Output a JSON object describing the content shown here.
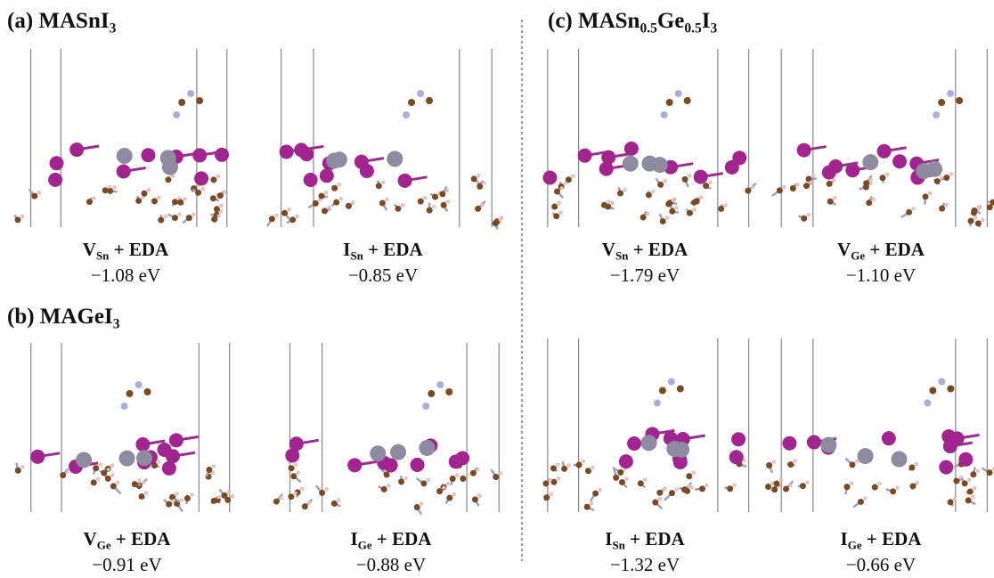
{
  "panels": [
    {
      "title": [
        {
          "t": "(a) MASnI"
        },
        {
          "t": "3",
          "sub": true
        }
      ],
      "structures": [
        {
          "label": [
            {
              "t": "V"
            },
            {
              "t": "Sn",
              "sub": true
            },
            {
              "t": " + EDA"
            }
          ],
          "energy": "−1.08 eV"
        },
        {
          "label": [
            {
              "t": "I"
            },
            {
              "t": "Sn",
              "sub": true
            },
            {
              "t": " + EDA"
            }
          ],
          "energy": "−0.85 eV"
        }
      ]
    },
    {
      "title": [
        {
          "t": "(b) MAGeI"
        },
        {
          "t": "3",
          "sub": true
        }
      ],
      "structures": [
        {
          "label": [
            {
              "t": "V"
            },
            {
              "t": "Ge",
              "sub": true
            },
            {
              "t": " + EDA"
            }
          ],
          "energy": "−0.91 eV"
        },
        {
          "label": [
            {
              "t": "I"
            },
            {
              "t": "Ge",
              "sub": true
            },
            {
              "t": " + EDA"
            }
          ],
          "energy": "−0.88 eV"
        }
      ]
    },
    {
      "title": [
        {
          "t": "(c) MASn"
        },
        {
          "t": "0.5",
          "sub": true
        },
        {
          "t": "Ge"
        },
        {
          "t": "0.5",
          "sub": true
        },
        {
          "t": "I"
        },
        {
          "t": "3",
          "sub": true
        }
      ],
      "structures": [
        {
          "label": [
            {
              "t": "V"
            },
            {
              "t": "Sn",
              "sub": true
            },
            {
              "t": " + EDA"
            }
          ],
          "energy": "−1.79 eV"
        },
        {
          "label": [
            {
              "t": "V"
            },
            {
              "t": "Ge",
              "sub": true
            },
            {
              "t": " + EDA"
            }
          ],
          "energy": "−1.10 eV"
        },
        {
          "label": [
            {
              "t": "I"
            },
            {
              "t": "Sn",
              "sub": true
            },
            {
              "t": " + EDA"
            }
          ],
          "energy": "−1.32 eV"
        },
        {
          "label": [
            {
              "t": "I"
            },
            {
              "t": "Ge",
              "sub": true
            },
            {
              "t": " + EDA"
            }
          ],
          "energy": "−0.66 eV"
        }
      ]
    }
  ]
}
